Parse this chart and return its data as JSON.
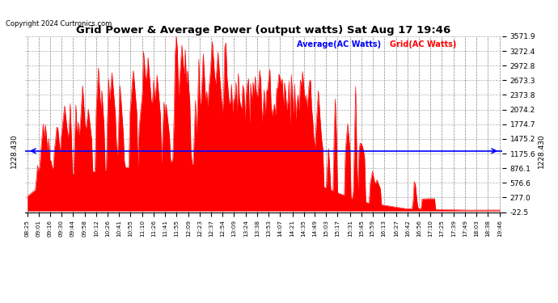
{
  "title": "Grid Power & Average Power (output watts) Sat Aug 17 19:46",
  "copyright": "Copyright 2024 Curtronics.com",
  "legend_average": "Average(AC Watts)",
  "legend_grid": "Grid(AC Watts)",
  "average_value": 1228.43,
  "ylim": [
    -22.5,
    3571.9
  ],
  "yticks_right": [
    3571.9,
    3272.4,
    2972.8,
    2673.3,
    2373.8,
    2074.2,
    1774.7,
    1475.2,
    1175.6,
    876.1,
    576.6,
    277.0,
    -22.5
  ],
  "avg_label": "1228.430",
  "background_color": "#ffffff",
  "grid_color": "#999999",
  "fill_color": "#ff0000",
  "avg_line_color": "#0000ff",
  "x_labels": [
    "08:25",
    "09:01",
    "09:16",
    "09:30",
    "09:44",
    "09:58",
    "10:12",
    "10:26",
    "10:41",
    "10:55",
    "11:10",
    "11:26",
    "11:41",
    "11:55",
    "12:09",
    "12:23",
    "12:37",
    "12:54",
    "13:09",
    "13:24",
    "13:38",
    "13:53",
    "14:07",
    "14:21",
    "14:35",
    "14:49",
    "15:03",
    "15:17",
    "15:31",
    "15:45",
    "15:59",
    "16:13",
    "16:27",
    "16:42",
    "16:56",
    "17:10",
    "17:25",
    "17:39",
    "17:49",
    "18:03",
    "18:38",
    "19:46"
  ]
}
